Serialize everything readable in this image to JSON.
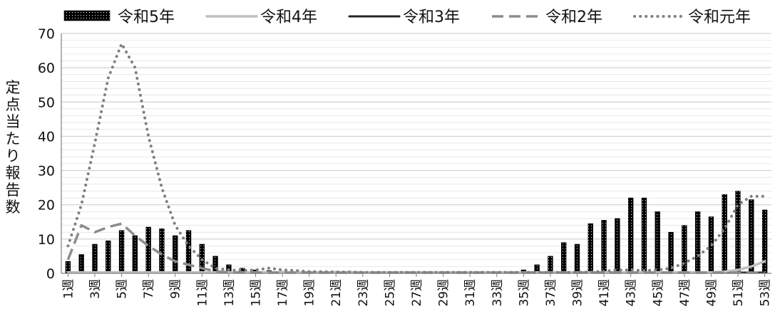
{
  "chart_data": {
    "type": "bar+line",
    "title": "",
    "xlabel": "",
    "ylabel": "定点当たり報告数",
    "ylim": [
      0,
      70
    ],
    "ytick_step": 10,
    "yticks": [
      "0",
      "10",
      "20",
      "30",
      "40",
      "50",
      "60",
      "70"
    ],
    "grid": "horizontal",
    "legend_position": "top",
    "x_count": 53,
    "x_tick_labels": [
      "1週",
      "3週",
      "5週",
      "7週",
      "9週",
      "11週",
      "13週",
      "15週",
      "17週",
      "19週",
      "21週",
      "23週",
      "25週",
      "27週",
      "29週",
      "31週",
      "33週",
      "35週",
      "37週",
      "39週",
      "41週",
      "43週",
      "45週",
      "47週",
      "49週",
      "51週",
      "53週"
    ],
    "x_tick_every": 2,
    "series": [
      {
        "name": "令和5年",
        "type": "bar",
        "values": [
          3.5,
          5.5,
          8.5,
          9.5,
          12.5,
          11,
          13.5,
          13,
          11,
          12.5,
          8.5,
          5,
          2.5,
          1.5,
          1,
          0.8,
          0.6,
          0.5,
          0.5,
          0.5,
          0.6,
          0.6,
          0.5,
          0.5,
          0.4,
          0.4,
          0.3,
          0.3,
          0.3,
          0.3,
          0.3,
          0.3,
          0.3,
          0.5,
          1,
          2.5,
          5,
          9,
          8.5,
          14.5,
          15.5,
          16,
          22,
          22,
          18,
          12,
          14,
          18,
          16.5,
          23,
          24,
          21.5,
          18.5
        ]
      },
      {
        "name": "令和4年",
        "type": "line",
        "values": [
          0.3,
          0.3,
          0.3,
          0.3,
          0.3,
          0.3,
          0.3,
          0.3,
          0.3,
          0.3,
          0.3,
          0.3,
          0.3,
          0.3,
          0.3,
          0.3,
          0.3,
          0.3,
          0.3,
          0.3,
          0.3,
          0.3,
          0.3,
          0.3,
          0.3,
          0.3,
          0.3,
          0.3,
          0.3,
          0.3,
          0.3,
          0.3,
          0.3,
          0.3,
          0.3,
          0.3,
          0.3,
          0.3,
          0.3,
          0.3,
          0.3,
          0.3,
          0.3,
          0.3,
          0.3,
          0.3,
          0.3,
          0.3,
          0.3,
          0.5,
          1,
          2,
          3.5
        ]
      },
      {
        "name": "令和3年",
        "type": "line",
        "values": [
          0.2,
          0.2,
          0.2,
          0.2,
          0.2,
          0.2,
          0.2,
          0.2,
          0.2,
          0.2,
          0.2,
          0.2,
          0.2,
          0.2,
          0.2,
          0.2,
          0.2,
          0.2,
          0.2,
          0.2,
          0.2,
          0.2,
          0.2,
          0.2,
          0.2,
          0.2,
          0.2,
          0.2,
          0.2,
          0.2,
          0.2,
          0.2,
          0.2,
          0.2,
          0.2,
          0.2,
          0.2,
          0.2,
          0.2,
          0.2,
          0.2,
          0.2,
          0.2,
          0.2,
          0.2,
          0.2,
          0.2,
          0.2,
          0.2,
          0.2,
          0.2,
          0.2,
          0.2
        ]
      },
      {
        "name": "令和2年",
        "type": "line",
        "values": [
          4,
          14,
          12,
          13.5,
          14.5,
          11,
          8,
          5.5,
          3.5,
          2.5,
          1.5,
          0.6,
          0.3,
          0.2,
          0.2,
          0.2,
          0.2,
          0.2,
          0.2,
          0.2,
          0.2,
          0.2,
          0.2,
          0.2,
          0.2,
          0.2,
          0.2,
          0.2,
          0.2,
          0.2,
          0.2,
          0.2,
          0.2,
          0.2,
          0.2,
          0.2,
          0.2,
          0.2,
          0.2,
          0.2,
          0.2,
          0.2,
          0.2,
          0.2,
          0.2,
          0.2,
          0.2,
          0.2,
          0.2,
          0.2,
          0.2,
          0.2,
          0.2
        ]
      },
      {
        "name": "令和元年",
        "type": "line",
        "values": [
          8,
          20,
          38,
          57,
          67,
          60,
          40,
          25,
          14,
          8,
          4,
          1.5,
          1,
          0.8,
          1,
          1.5,
          1,
          0.8,
          0.5,
          0.5,
          0.4,
          0.4,
          0.3,
          0.3,
          0.3,
          0.3,
          0.3,
          0.3,
          0.3,
          0.3,
          0.3,
          0.3,
          0.3,
          0.3,
          0.3,
          0.3,
          0.3,
          0.3,
          0.3,
          0.4,
          0.6,
          1,
          1,
          0.8,
          1,
          1.5,
          3,
          5,
          8,
          13,
          20,
          22.5,
          22.5
        ]
      }
    ],
    "colors": {
      "bar": "#000000",
      "bar_dots": "#ffffff",
      "r4_line": "#bfbfbf",
      "r3_line": "#262626",
      "r2_line": "#8c8c8c",
      "r1_line": "#7f7f7f",
      "grid": "#d9d9d9",
      "axis": "#7f7f7f"
    }
  }
}
